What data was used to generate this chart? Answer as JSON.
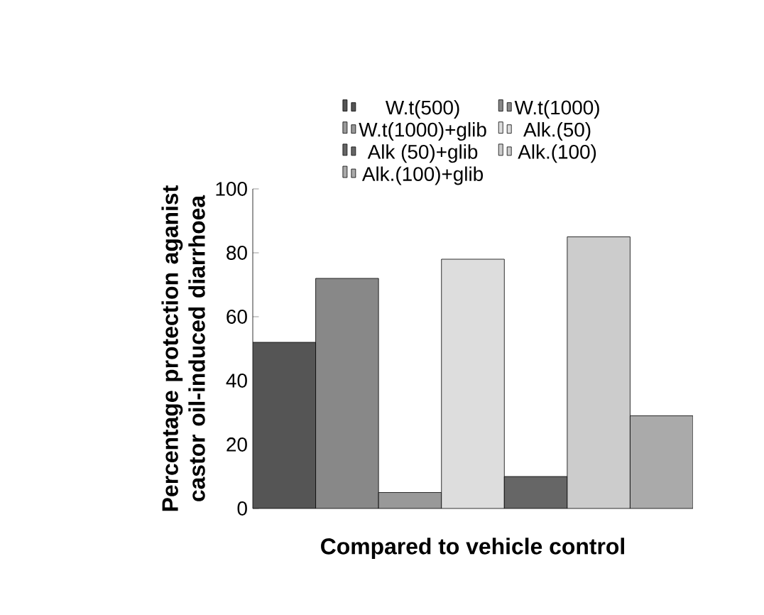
{
  "chart_data": {
    "type": "bar",
    "xlabel": "Compared to vehicle control",
    "ylabel": "Percentage protection aganist castor oil-induced diarrhoea",
    "categories": [
      null
    ],
    "series": [
      {
        "name": "W.t(500)",
        "color": "#555555",
        "values": [
          52
        ]
      },
      {
        "name": "W.t(1000)",
        "color": "#888888",
        "values": [
          72
        ]
      },
      {
        "name": "W.t(1000)+glib",
        "color": "#999999",
        "values": [
          5
        ]
      },
      {
        "name": "Alk.(50)",
        "color": "#dddddd",
        "values": [
          78
        ]
      },
      {
        "name": "Alk (50)+glib",
        "color": "#666666",
        "values": [
          10
        ]
      },
      {
        "name": "Alk.(100)",
        "color": "#cccccc",
        "values": [
          85
        ]
      },
      {
        "name": "Alk.(100)+glib",
        "color": "#aaaaaa",
        "values": [
          29
        ]
      }
    ],
    "ylim": [
      0,
      100
    ],
    "yticks": [
      0,
      20,
      40,
      60,
      80,
      100
    ],
    "legend": "top"
  }
}
